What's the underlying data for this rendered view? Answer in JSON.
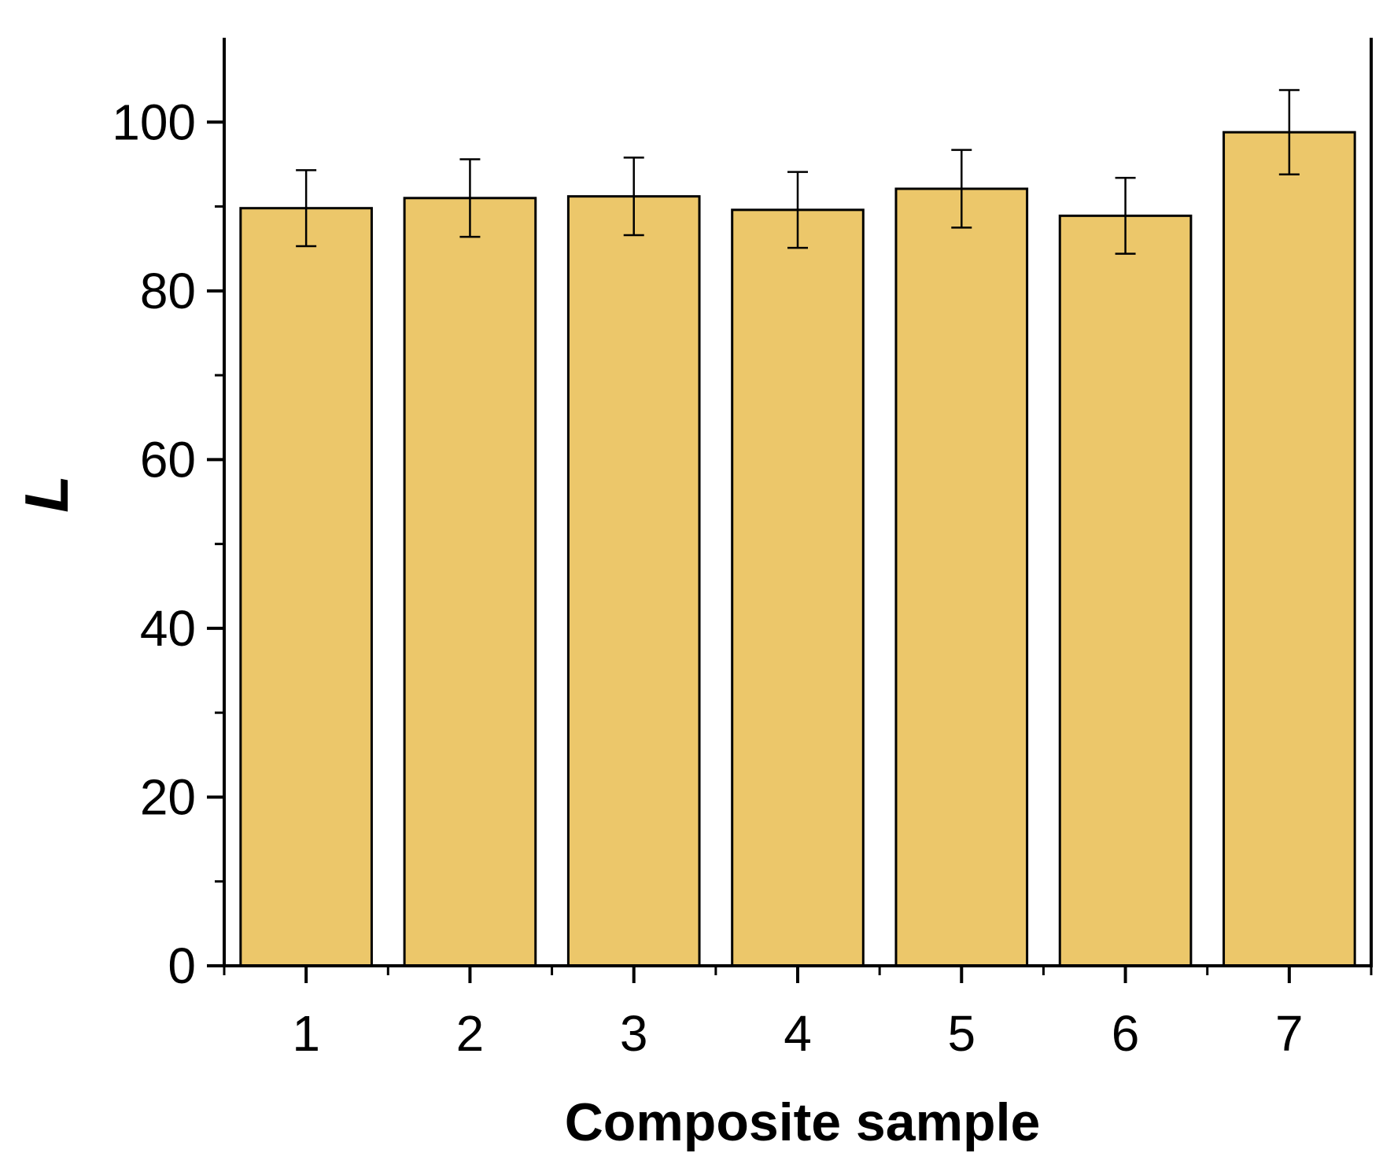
{
  "chart_data": {
    "type": "bar",
    "categories": [
      "1",
      "2",
      "3",
      "4",
      "5",
      "6",
      "7"
    ],
    "values": [
      89.8,
      91.0,
      91.2,
      89.6,
      92.1,
      88.9,
      98.8
    ],
    "errors": [
      4.5,
      4.6,
      4.6,
      4.5,
      4.6,
      4.5,
      5.0
    ],
    "xlabel": "Composite sample",
    "ylabel": "L",
    "ylim": [
      0,
      110
    ],
    "yticks": [
      0,
      20,
      40,
      60,
      80,
      100
    ],
    "yticks_minor": [
      10,
      30,
      50,
      70,
      90
    ],
    "grid": false,
    "legend": "none",
    "colors": {
      "bar_fill": "#ecc76a",
      "bar_stroke": "#000000",
      "axis": "#000000",
      "error_bar": "#000000"
    }
  }
}
